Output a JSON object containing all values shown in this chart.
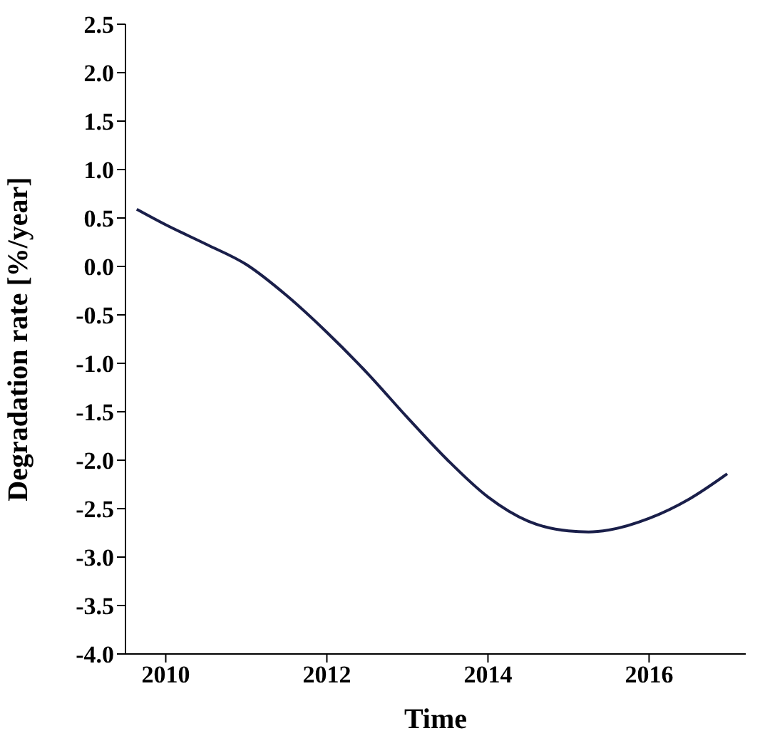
{
  "chart_data": {
    "type": "line",
    "xlabel": "Time",
    "ylabel": "Degradation rate [%/year]",
    "x": [
      2009.64,
      2010,
      2010.5,
      2011,
      2011.5,
      2012,
      2012.5,
      2013,
      2013.5,
      2014,
      2014.5,
      2015,
      2015.25,
      2015.5,
      2016,
      2016.5,
      2016.97
    ],
    "series": [
      {
        "color": "#1a1f4a",
        "values": [
          0.59,
          0.43,
          0.23,
          0.02,
          -0.3,
          -0.68,
          -1.1,
          -1.56,
          -2.0,
          -2.38,
          -2.63,
          -2.73,
          -2.74,
          -2.72,
          -2.6,
          -2.4,
          -2.14
        ]
      }
    ],
    "xlim": [
      2009.5,
      2017.2
    ],
    "xticks": [
      2010,
      2012,
      2014,
      2016
    ],
    "ylim": [
      -4,
      2.5
    ],
    "yticks": [
      {
        "value": 2.5,
        "label": "2.5"
      },
      {
        "value": 2,
        "label": "2.0"
      },
      {
        "value": 1.5,
        "label": "1.5"
      },
      {
        "value": 1,
        "label": "1.0"
      },
      {
        "value": 0.5,
        "label": "0.5"
      },
      {
        "value": 0,
        "label": "0.0"
      },
      {
        "value": -0.5,
        "label": "-0.5"
      },
      {
        "value": -1,
        "label": "-1.0"
      },
      {
        "value": -1.5,
        "label": "-1.5"
      },
      {
        "value": -2,
        "label": "-2.0"
      },
      {
        "value": -2.5,
        "label": "-2.5"
      },
      {
        "value": -3,
        "label": "-3.0"
      },
      {
        "value": -3.5,
        "label": "-3.5"
      },
      {
        "value": -4,
        "label": "-4.0"
      }
    ],
    "grid": false,
    "legend": false
  }
}
